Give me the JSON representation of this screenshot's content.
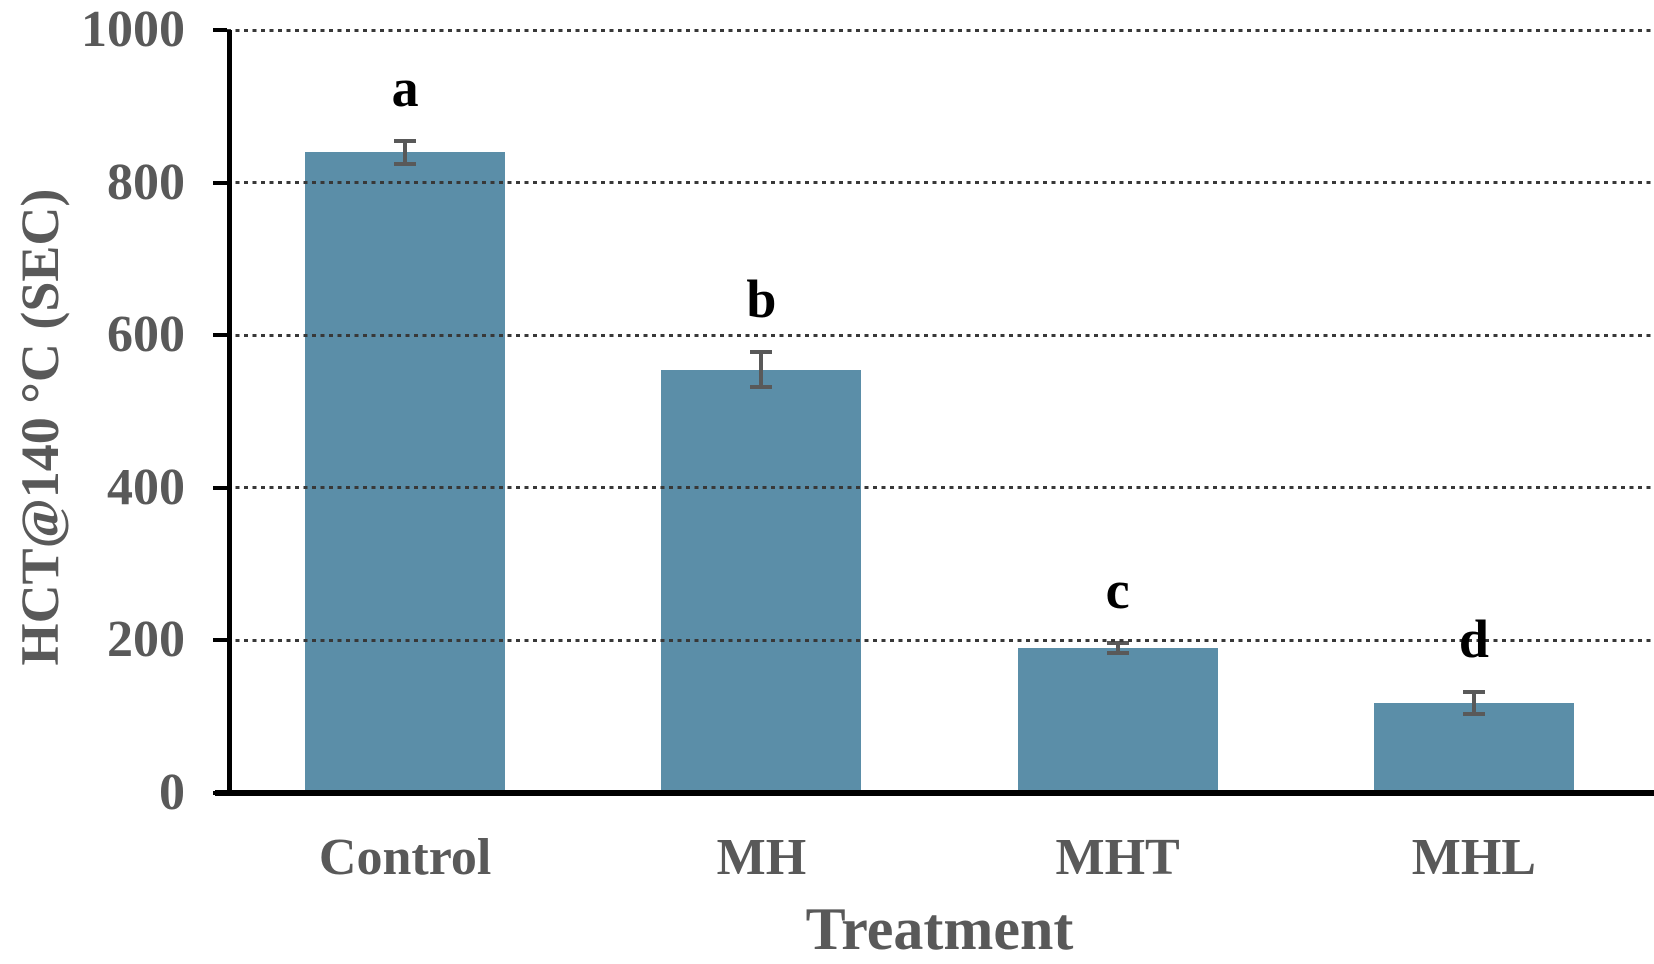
{
  "chart_data": {
    "type": "bar",
    "title": "",
    "xlabel": "Treatment",
    "ylabel": "HCT@140 °C (SEC)",
    "categories": [
      "Control",
      "MH",
      "MHT",
      "MHL"
    ],
    "values": [
      840,
      555,
      190,
      118
    ],
    "error_bars": [
      15,
      23,
      7,
      15
    ],
    "significance_letters": [
      "a",
      "b",
      "c",
      "d"
    ],
    "ylim": [
      0,
      1000
    ],
    "yticks": [
      0,
      200,
      400,
      600,
      800,
      1000
    ],
    "grid": "horizontal dotted gridlines at every labeled y tick, drawn over bars",
    "legend": "none",
    "bar_color": "#5b8ea8",
    "error_bar_color": "#595959",
    "axis_text_color": "#595959",
    "letter_color": "#000000",
    "axis_line_color": "#000000"
  }
}
